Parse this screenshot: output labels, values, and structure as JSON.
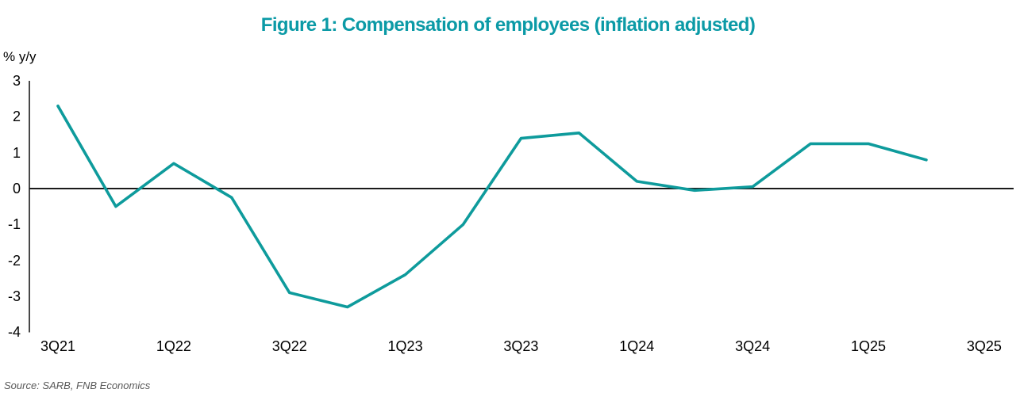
{
  "chart_data": {
    "type": "line",
    "title": "Figure 1: Compensation of employees (inflation adjusted)",
    "ylabel": "% y/y",
    "x": [
      "3Q21",
      "4Q21",
      "1Q22",
      "2Q22",
      "3Q22",
      "4Q22",
      "1Q23",
      "2Q23",
      "3Q23",
      "4Q23",
      "1Q24",
      "2Q24",
      "3Q24",
      "4Q24",
      "1Q25",
      "2Q25"
    ],
    "series": [
      {
        "name": "Compensation of employees, inflation adjusted (% y/y)",
        "values": [
          2.3,
          -0.5,
          0.7,
          -0.25,
          -2.9,
          -3.3,
          -2.4,
          -1.0,
          1.4,
          1.55,
          0.2,
          -0.05,
          0.05,
          1.25,
          1.25,
          0.8
        ]
      }
    ],
    "x_tick_labels": [
      "3Q21",
      "1Q22",
      "3Q22",
      "1Q23",
      "3Q23",
      "1Q24",
      "3Q24",
      "1Q25",
      "3Q25"
    ],
    "y_ticks": [
      3,
      2,
      1,
      0,
      -1,
      -2,
      -3,
      -4
    ],
    "ylim": [
      -4,
      3
    ],
    "grid": false,
    "legend_position": "none",
    "colors": {
      "line": "#0e9b9c",
      "title": "#0b9aa6",
      "axis": "#1a1a1a",
      "tick_text": "#000000",
      "source_text": "#595959"
    }
  },
  "footer": {
    "source": "Source: SARB, FNB Economics"
  }
}
